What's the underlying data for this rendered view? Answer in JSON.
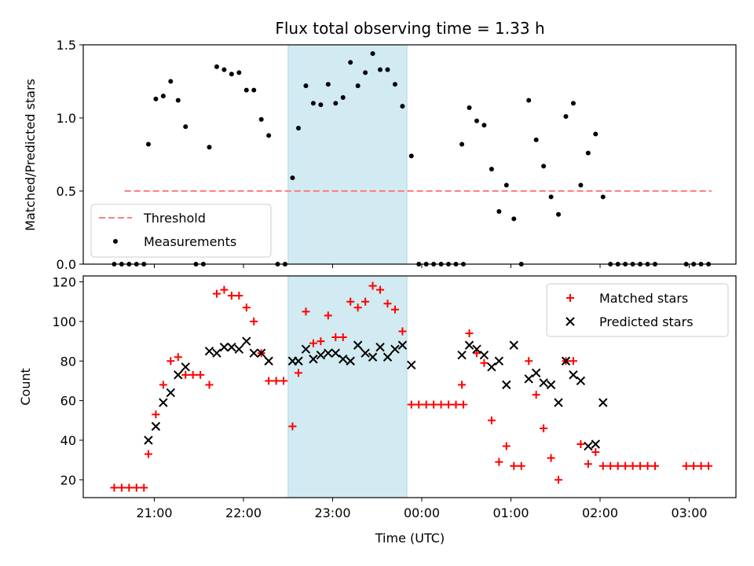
{
  "chart_data": [
    {
      "type": "scatter",
      "title": "Flux total observing time = 1.33 h",
      "xlabel": "",
      "ylabel": "Matched/Predicted stars",
      "ylim": [
        0,
        1.5
      ],
      "yticks": [
        0.0,
        0.5,
        1.0,
        1.5
      ],
      "ytick_labels": [
        "0.0",
        "0.5",
        "1.0",
        "1.5"
      ],
      "shaded_span": [
        "22:30",
        "23:50"
      ],
      "shade_color": "#add8e6",
      "legend_position": "lower-left",
      "legend": [
        "Threshold",
        "Measurements"
      ],
      "threshold": {
        "name": "Threshold",
        "y": 0.5,
        "x_range": [
          "20:40",
          "03:15"
        ],
        "color": "#ff7f7f"
      },
      "measurements": {
        "name": "Measurements",
        "color": "#000000",
        "points": [
          [
            "20:33",
            0
          ],
          [
            "20:38",
            0
          ],
          [
            "20:43",
            0
          ],
          [
            "20:48",
            0
          ],
          [
            "20:53",
            0
          ],
          [
            "20:56",
            0.82
          ],
          [
            "21:01",
            1.13
          ],
          [
            "21:06",
            1.15
          ],
          [
            "21:11",
            1.25
          ],
          [
            "21:16",
            1.12
          ],
          [
            "21:21",
            0.94
          ],
          [
            "21:28",
            0
          ],
          [
            "21:33",
            0
          ],
          [
            "21:37",
            0.8
          ],
          [
            "21:42",
            1.35
          ],
          [
            "21:47",
            1.33
          ],
          [
            "21:52",
            1.3
          ],
          [
            "21:57",
            1.31
          ],
          [
            "22:02",
            1.19
          ],
          [
            "22:07",
            1.19
          ],
          [
            "22:12",
            0.99
          ],
          [
            "22:17",
            0.88
          ],
          [
            "22:23",
            0
          ],
          [
            "22:28",
            0
          ],
          [
            "22:33",
            0.59
          ],
          [
            "22:37",
            0.93
          ],
          [
            "22:42",
            1.22
          ],
          [
            "22:47",
            1.1
          ],
          [
            "22:52",
            1.09
          ],
          [
            "22:57",
            1.23
          ],
          [
            "23:02",
            1.1
          ],
          [
            "23:07",
            1.14
          ],
          [
            "23:12",
            1.38
          ],
          [
            "23:17",
            1.22
          ],
          [
            "23:22",
            1.31
          ],
          [
            "23:27",
            1.44
          ],
          [
            "23:32",
            1.33
          ],
          [
            "23:37",
            1.33
          ],
          [
            "23:42",
            1.23
          ],
          [
            "23:47",
            1.08
          ],
          [
            "23:53",
            0.74
          ],
          [
            "23:58",
            0
          ],
          [
            "00:03",
            0
          ],
          [
            "00:08",
            0
          ],
          [
            "00:13",
            0
          ],
          [
            "00:18",
            0
          ],
          [
            "00:23",
            0
          ],
          [
            "00:28",
            0
          ],
          [
            "00:27",
            0.82
          ],
          [
            "00:32",
            1.07
          ],
          [
            "00:37",
            0.98
          ],
          [
            "00:42",
            0.95
          ],
          [
            "00:47",
            0.65
          ],
          [
            "00:52",
            0.36
          ],
          [
            "00:57",
            0.54
          ],
          [
            "01:02",
            0.31
          ],
          [
            "01:07",
            0
          ],
          [
            "01:12",
            1.12
          ],
          [
            "01:17",
            0.85
          ],
          [
            "01:22",
            0.67
          ],
          [
            "01:27",
            0.46
          ],
          [
            "01:32",
            0.34
          ],
          [
            "01:37",
            1.01
          ],
          [
            "01:42",
            1.1
          ],
          [
            "01:47",
            0.54
          ],
          [
            "01:52",
            0.76
          ],
          [
            "01:57",
            0.89
          ],
          [
            "02:02",
            0.46
          ],
          [
            "02:07",
            0
          ],
          [
            "02:12",
            0
          ],
          [
            "02:17",
            0
          ],
          [
            "02:22",
            0
          ],
          [
            "02:27",
            0
          ],
          [
            "02:32",
            0
          ],
          [
            "02:37",
            0
          ],
          [
            "02:58",
            0
          ],
          [
            "03:03",
            0
          ],
          [
            "03:08",
            0
          ],
          [
            "03:13",
            0
          ]
        ]
      }
    },
    {
      "type": "scatter",
      "title": "",
      "xlabel": "Time (UTC)",
      "ylabel": "Count",
      "ylim": [
        11,
        123
      ],
      "yticks": [
        20,
        40,
        60,
        80,
        100,
        120
      ],
      "ytick_labels": [
        "20",
        "40",
        "60",
        "80",
        "100",
        "120"
      ],
      "xticks": [
        "21:00",
        "22:00",
        "23:00",
        "00:00",
        "01:00",
        "02:00",
        "03:00"
      ],
      "legend_position": "top-right",
      "legend": [
        "Matched stars",
        "Predicted stars"
      ],
      "matched": {
        "name": "Matched stars",
        "color": "#ff0000",
        "points": [
          [
            "20:33",
            16
          ],
          [
            "20:38",
            16
          ],
          [
            "20:43",
            16
          ],
          [
            "20:48",
            16
          ],
          [
            "20:53",
            16
          ],
          [
            "20:56",
            33
          ],
          [
            "21:01",
            53
          ],
          [
            "21:06",
            68
          ],
          [
            "21:11",
            80
          ],
          [
            "21:16",
            82
          ],
          [
            "21:21",
            73
          ],
          [
            "21:26",
            73
          ],
          [
            "21:31",
            73
          ],
          [
            "21:37",
            68
          ],
          [
            "21:42",
            114
          ],
          [
            "21:47",
            116
          ],
          [
            "21:52",
            113
          ],
          [
            "21:57",
            113
          ],
          [
            "22:02",
            107
          ],
          [
            "22:07",
            100
          ],
          [
            "22:12",
            84
          ],
          [
            "22:17",
            70
          ],
          [
            "22:22",
            70
          ],
          [
            "22:27",
            70
          ],
          [
            "22:33",
            47
          ],
          [
            "22:37",
            74
          ],
          [
            "22:42",
            105
          ],
          [
            "22:47",
            89
          ],
          [
            "22:52",
            90
          ],
          [
            "22:57",
            103
          ],
          [
            "23:02",
            92
          ],
          [
            "23:07",
            92
          ],
          [
            "23:12",
            110
          ],
          [
            "23:17",
            107
          ],
          [
            "23:22",
            110
          ],
          [
            "23:27",
            118
          ],
          [
            "23:32",
            116
          ],
          [
            "23:37",
            109
          ],
          [
            "23:42",
            106
          ],
          [
            "23:47",
            95
          ],
          [
            "23:53",
            58
          ],
          [
            "23:58",
            58
          ],
          [
            "00:03",
            58
          ],
          [
            "00:08",
            58
          ],
          [
            "00:13",
            58
          ],
          [
            "00:18",
            58
          ],
          [
            "00:23",
            58
          ],
          [
            "00:28",
            58
          ],
          [
            "00:27",
            68
          ],
          [
            "00:32",
            94
          ],
          [
            "00:37",
            84
          ],
          [
            "00:42",
            79
          ],
          [
            "00:47",
            50
          ],
          [
            "00:52",
            29
          ],
          [
            "00:57",
            37
          ],
          [
            "01:02",
            27
          ],
          [
            "01:07",
            27
          ],
          [
            "01:12",
            80
          ],
          [
            "01:17",
            63
          ],
          [
            "01:22",
            46
          ],
          [
            "01:27",
            31
          ],
          [
            "01:32",
            20
          ],
          [
            "01:37",
            80
          ],
          [
            "01:42",
            80
          ],
          [
            "01:47",
            38
          ],
          [
            "01:52",
            28
          ],
          [
            "01:57",
            34
          ],
          [
            "02:02",
            27
          ],
          [
            "02:07",
            27
          ],
          [
            "02:12",
            27
          ],
          [
            "02:17",
            27
          ],
          [
            "02:22",
            27
          ],
          [
            "02:27",
            27
          ],
          [
            "02:32",
            27
          ],
          [
            "02:37",
            27
          ],
          [
            "02:58",
            27
          ],
          [
            "03:03",
            27
          ],
          [
            "03:08",
            27
          ],
          [
            "03:13",
            27
          ]
        ]
      },
      "predicted": {
        "name": "Predicted stars",
        "color": "#000000",
        "points": [
          [
            "20:56",
            40
          ],
          [
            "21:01",
            47
          ],
          [
            "21:06",
            59
          ],
          [
            "21:11",
            64
          ],
          [
            "21:16",
            73
          ],
          [
            "21:21",
            77
          ],
          [
            "21:37",
            85
          ],
          [
            "21:42",
            84
          ],
          [
            "21:47",
            87
          ],
          [
            "21:52",
            87
          ],
          [
            "21:57",
            86
          ],
          [
            "22:02",
            90
          ],
          [
            "22:07",
            84
          ],
          [
            "22:12",
            84
          ],
          [
            "22:17",
            80
          ],
          [
            "22:33",
            80
          ],
          [
            "22:37",
            80
          ],
          [
            "22:42",
            86
          ],
          [
            "22:47",
            81
          ],
          [
            "22:52",
            83
          ],
          [
            "22:57",
            84
          ],
          [
            "23:02",
            84
          ],
          [
            "23:07",
            81
          ],
          [
            "23:12",
            80
          ],
          [
            "23:17",
            88
          ],
          [
            "23:22",
            84
          ],
          [
            "23:27",
            82
          ],
          [
            "23:32",
            87
          ],
          [
            "23:37",
            82
          ],
          [
            "23:42",
            86
          ],
          [
            "23:47",
            88
          ],
          [
            "23:53",
            78
          ],
          [
            "00:27",
            83
          ],
          [
            "00:32",
            88
          ],
          [
            "00:37",
            86
          ],
          [
            "00:42",
            83
          ],
          [
            "00:47",
            77
          ],
          [
            "00:52",
            80
          ],
          [
            "00:57",
            68
          ],
          [
            "01:02",
            88
          ],
          [
            "01:12",
            71
          ],
          [
            "01:17",
            74
          ],
          [
            "01:22",
            69
          ],
          [
            "01:27",
            68
          ],
          [
            "01:32",
            59
          ],
          [
            "01:37",
            80
          ],
          [
            "01:42",
            73
          ],
          [
            "01:47",
            70
          ],
          [
            "01:52",
            37
          ],
          [
            "01:57",
            38
          ],
          [
            "02:02",
            59
          ]
        ]
      }
    }
  ]
}
